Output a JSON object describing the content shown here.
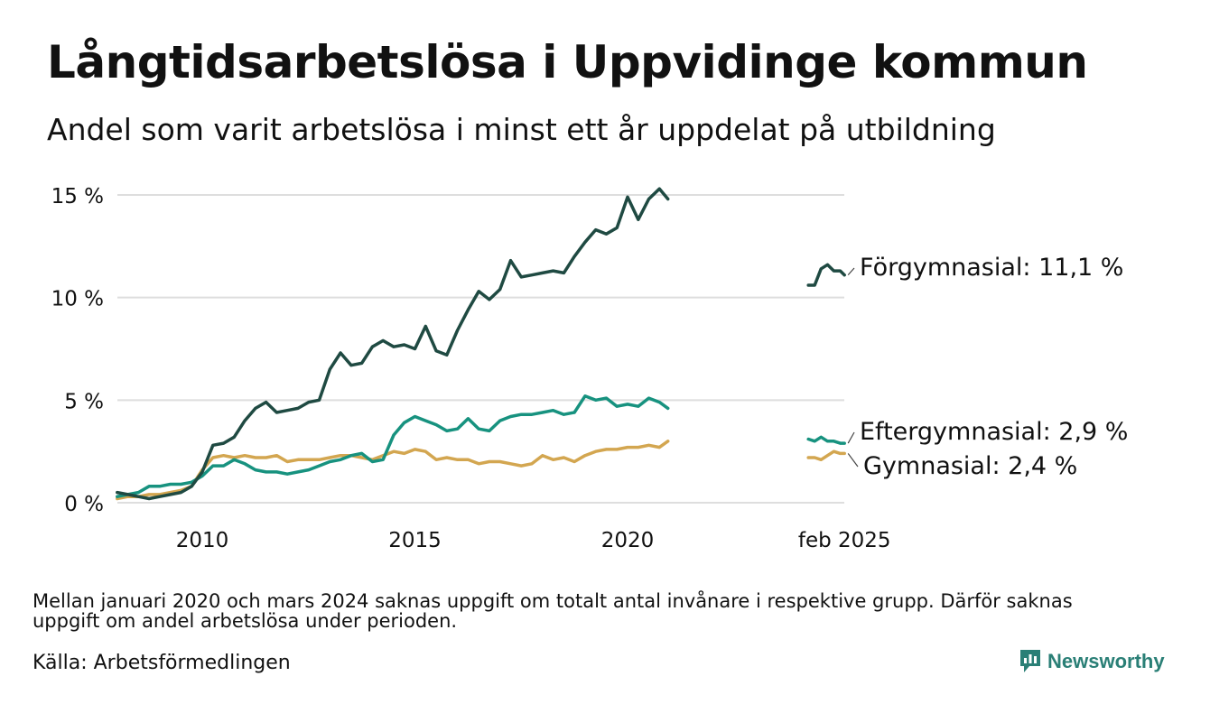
{
  "title": "Långtidsarbetslösa i Uppvidinge kommun",
  "subtitle": "Andel som varit arbetslösa i minst ett år uppdelat på utbildning",
  "note": "Mellan januari 2020 och mars 2024 saknas uppgift om totalt antal invånare i respektive grupp. Därför saknas uppgift om andel arbetslösa under perioden.",
  "source": "Källa: Arbetsförmedlingen",
  "brand": "Newsworthy",
  "colors": {
    "forgymnasial": "#1f4a42",
    "eftergymnasial": "#17927f",
    "gymnasial": "#d3a650",
    "grid": "#dedede",
    "brand": "#2a7f76"
  },
  "chart_data": {
    "type": "line",
    "ylim": [
      0,
      15
    ],
    "y_ticks": [
      0,
      5,
      10,
      15
    ],
    "y_tick_labels": [
      "0 %",
      "5 %",
      "10 %",
      "15 %"
    ],
    "x_ticks": [
      2010,
      2015,
      2020,
      2025.1
    ],
    "x_tick_labels": [
      "2010",
      "2015",
      "2020",
      "feb 2025"
    ],
    "grid": "horizontal",
    "series": [
      {
        "name": "Förgymnasial",
        "label": "Förgymnasial: 11,1 %",
        "color": "#1f4a42",
        "segments": [
          [
            [
              2008.0,
              0.5
            ],
            [
              2008.25,
              0.4
            ],
            [
              2008.5,
              0.3
            ],
            [
              2008.75,
              0.2
            ],
            [
              2009.0,
              0.3
            ],
            [
              2009.25,
              0.4
            ],
            [
              2009.5,
              0.5
            ],
            [
              2009.75,
              0.8
            ],
            [
              2010.0,
              1.5
            ],
            [
              2010.25,
              2.8
            ],
            [
              2010.5,
              2.9
            ],
            [
              2010.75,
              3.2
            ],
            [
              2011.0,
              4.0
            ],
            [
              2011.25,
              4.6
            ],
            [
              2011.5,
              4.9
            ],
            [
              2011.75,
              4.4
            ],
            [
              2012.0,
              4.5
            ],
            [
              2012.25,
              4.6
            ],
            [
              2012.5,
              4.9
            ],
            [
              2012.75,
              5.0
            ],
            [
              2013.0,
              6.5
            ],
            [
              2013.25,
              7.3
            ],
            [
              2013.5,
              6.7
            ],
            [
              2013.75,
              6.8
            ],
            [
              2014.0,
              7.6
            ],
            [
              2014.25,
              7.9
            ],
            [
              2014.5,
              7.6
            ],
            [
              2014.75,
              7.7
            ],
            [
              2015.0,
              7.5
            ],
            [
              2015.25,
              8.6
            ],
            [
              2015.5,
              7.4
            ],
            [
              2015.75,
              7.2
            ],
            [
              2016.0,
              8.4
            ],
            [
              2016.25,
              9.4
            ],
            [
              2016.5,
              10.3
            ],
            [
              2016.75,
              9.9
            ],
            [
              2017.0,
              10.4
            ],
            [
              2017.25,
              11.8
            ],
            [
              2017.5,
              11.0
            ],
            [
              2017.75,
              11.1
            ],
            [
              2018.0,
              11.2
            ],
            [
              2018.25,
              11.3
            ],
            [
              2018.5,
              11.2
            ],
            [
              2018.75,
              12.0
            ],
            [
              2019.0,
              12.7
            ],
            [
              2019.25,
              13.3
            ],
            [
              2019.5,
              13.1
            ],
            [
              2019.75,
              13.4
            ],
            [
              2020.0,
              14.9
            ],
            [
              2020.25,
              13.8
            ],
            [
              2020.5,
              14.8
            ],
            [
              2020.75,
              15.3
            ],
            [
              2020.95,
              14.8
            ]
          ],
          [
            [
              2024.25,
              10.6
            ],
            [
              2024.4,
              10.6
            ],
            [
              2024.55,
              11.4
            ],
            [
              2024.7,
              11.6
            ],
            [
              2024.85,
              11.3
            ],
            [
              2025.0,
              11.3
            ],
            [
              2025.1,
              11.1
            ]
          ]
        ]
      },
      {
        "name": "Eftergymnasial",
        "label": "Eftergymnasial:  2,9 %",
        "color": "#17927f",
        "segments": [
          [
            [
              2008.0,
              0.3
            ],
            [
              2008.25,
              0.4
            ],
            [
              2008.5,
              0.5
            ],
            [
              2008.75,
              0.8
            ],
            [
              2009.0,
              0.8
            ],
            [
              2009.25,
              0.9
            ],
            [
              2009.5,
              0.9
            ],
            [
              2009.75,
              1.0
            ],
            [
              2010.0,
              1.3
            ],
            [
              2010.25,
              1.8
            ],
            [
              2010.5,
              1.8
            ],
            [
              2010.75,
              2.1
            ],
            [
              2011.0,
              1.9
            ],
            [
              2011.25,
              1.6
            ],
            [
              2011.5,
              1.5
            ],
            [
              2011.75,
              1.5
            ],
            [
              2012.0,
              1.4
            ],
            [
              2012.25,
              1.5
            ],
            [
              2012.5,
              1.6
            ],
            [
              2012.75,
              1.8
            ],
            [
              2013.0,
              2.0
            ],
            [
              2013.25,
              2.1
            ],
            [
              2013.5,
              2.3
            ],
            [
              2013.75,
              2.4
            ],
            [
              2014.0,
              2.0
            ],
            [
              2014.25,
              2.1
            ],
            [
              2014.5,
              3.3
            ],
            [
              2014.75,
              3.9
            ],
            [
              2015.0,
              4.2
            ],
            [
              2015.25,
              4.0
            ],
            [
              2015.5,
              3.8
            ],
            [
              2015.75,
              3.5
            ],
            [
              2016.0,
              3.6
            ],
            [
              2016.25,
              4.1
            ],
            [
              2016.5,
              3.6
            ],
            [
              2016.75,
              3.5
            ],
            [
              2017.0,
              4.0
            ],
            [
              2017.25,
              4.2
            ],
            [
              2017.5,
              4.3
            ],
            [
              2017.75,
              4.3
            ],
            [
              2018.0,
              4.4
            ],
            [
              2018.25,
              4.5
            ],
            [
              2018.5,
              4.3
            ],
            [
              2018.75,
              4.4
            ],
            [
              2019.0,
              5.2
            ],
            [
              2019.25,
              5.0
            ],
            [
              2019.5,
              5.1
            ],
            [
              2019.75,
              4.7
            ],
            [
              2020.0,
              4.8
            ],
            [
              2020.25,
              4.7
            ],
            [
              2020.5,
              5.1
            ],
            [
              2020.75,
              4.9
            ],
            [
              2020.95,
              4.6
            ]
          ],
          [
            [
              2024.25,
              3.1
            ],
            [
              2024.4,
              3.0
            ],
            [
              2024.55,
              3.2
            ],
            [
              2024.7,
              3.0
            ],
            [
              2024.85,
              3.0
            ],
            [
              2025.0,
              2.9
            ],
            [
              2025.1,
              2.9
            ]
          ]
        ]
      },
      {
        "name": "Gymnasial",
        "label": "Gymnasial:  2,4 %",
        "color": "#d3a650",
        "segments": [
          [
            [
              2008.0,
              0.2
            ],
            [
              2008.25,
              0.3
            ],
            [
              2008.5,
              0.3
            ],
            [
              2008.75,
              0.4
            ],
            [
              2009.0,
              0.4
            ],
            [
              2009.25,
              0.5
            ],
            [
              2009.5,
              0.6
            ],
            [
              2009.75,
              0.8
            ],
            [
              2010.0,
              1.6
            ],
            [
              2010.25,
              2.2
            ],
            [
              2010.5,
              2.3
            ],
            [
              2010.75,
              2.2
            ],
            [
              2011.0,
              2.3
            ],
            [
              2011.25,
              2.2
            ],
            [
              2011.5,
              2.2
            ],
            [
              2011.75,
              2.3
            ],
            [
              2012.0,
              2.0
            ],
            [
              2012.25,
              2.1
            ],
            [
              2012.5,
              2.1
            ],
            [
              2012.75,
              2.1
            ],
            [
              2013.0,
              2.2
            ],
            [
              2013.25,
              2.3
            ],
            [
              2013.5,
              2.3
            ],
            [
              2013.75,
              2.2
            ],
            [
              2014.0,
              2.1
            ],
            [
              2014.25,
              2.3
            ],
            [
              2014.5,
              2.5
            ],
            [
              2014.75,
              2.4
            ],
            [
              2015.0,
              2.6
            ],
            [
              2015.25,
              2.5
            ],
            [
              2015.5,
              2.1
            ],
            [
              2015.75,
              2.2
            ],
            [
              2016.0,
              2.1
            ],
            [
              2016.25,
              2.1
            ],
            [
              2016.5,
              1.9
            ],
            [
              2016.75,
              2.0
            ],
            [
              2017.0,
              2.0
            ],
            [
              2017.25,
              1.9
            ],
            [
              2017.5,
              1.8
            ],
            [
              2017.75,
              1.9
            ],
            [
              2018.0,
              2.3
            ],
            [
              2018.25,
              2.1
            ],
            [
              2018.5,
              2.2
            ],
            [
              2018.75,
              2.0
            ],
            [
              2019.0,
              2.3
            ],
            [
              2019.25,
              2.5
            ],
            [
              2019.5,
              2.6
            ],
            [
              2019.75,
              2.6
            ],
            [
              2020.0,
              2.7
            ],
            [
              2020.25,
              2.7
            ],
            [
              2020.5,
              2.8
            ],
            [
              2020.75,
              2.7
            ],
            [
              2020.95,
              3.0
            ]
          ],
          [
            [
              2024.25,
              2.2
            ],
            [
              2024.4,
              2.2
            ],
            [
              2024.55,
              2.1
            ],
            [
              2024.7,
              2.3
            ],
            [
              2024.85,
              2.5
            ],
            [
              2025.0,
              2.4
            ],
            [
              2025.1,
              2.4
            ]
          ]
        ]
      }
    ]
  }
}
